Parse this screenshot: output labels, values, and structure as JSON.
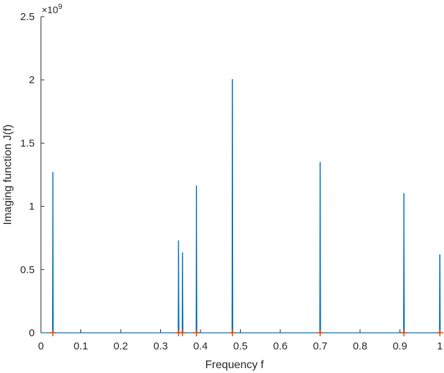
{
  "chart_data": {
    "type": "line",
    "xlabel": "Frequency f",
    "ylabel": "Imaging function J(f)",
    "y_exponent_label": "×10",
    "y_exponent_power": "9",
    "xlim": [
      0,
      1
    ],
    "ylim": [
      0,
      2.5
    ],
    "x_ticks": [
      0,
      0.1,
      0.2,
      0.3,
      0.4,
      0.5,
      0.6,
      0.7,
      0.8,
      0.9,
      1
    ],
    "x_tick_labels": [
      "0",
      "0.1",
      "0.2",
      "0.3",
      "0.4",
      "0.5",
      "0.6",
      "0.7",
      "0.8",
      "0.9",
      "1"
    ],
    "y_ticks": [
      0,
      0.5,
      1,
      1.5,
      2,
      2.5
    ],
    "y_tick_labels": [
      "0",
      "0.5",
      "1",
      "1.5",
      "2",
      "2.5"
    ],
    "grid": false,
    "series": [
      {
        "color": "#0072bd",
        "style": "line",
        "peaks": [
          {
            "x": 0.03,
            "y": 1.27
          },
          {
            "x": 0.345,
            "y": 0.73
          },
          {
            "x": 0.355,
            "y": 0.635
          },
          {
            "x": 0.39,
            "y": 1.165
          },
          {
            "x": 0.48,
            "y": 2.005
          },
          {
            "x": 0.7,
            "y": 1.35
          },
          {
            "x": 0.91,
            "y": 1.105
          },
          {
            "x": 1.0,
            "y": 0.62
          }
        ]
      },
      {
        "color": "#d95319",
        "style": "plus-markers",
        "points": [
          {
            "x": 0.03,
            "y": 0
          },
          {
            "x": 0.345,
            "y": 0
          },
          {
            "x": 0.355,
            "y": 0
          },
          {
            "x": 0.39,
            "y": 0
          },
          {
            "x": 0.48,
            "y": 0
          },
          {
            "x": 0.7,
            "y": 0
          },
          {
            "x": 0.91,
            "y": 0
          },
          {
            "x": 1.0,
            "y": 0
          }
        ]
      }
    ]
  }
}
